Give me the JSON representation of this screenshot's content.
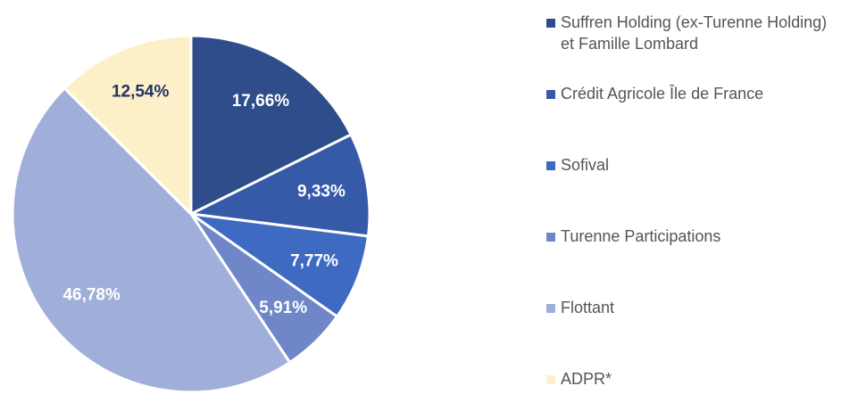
{
  "chart_data": {
    "type": "pie",
    "categories": [
      "Suffren Holding (ex-Turenne Holding) et Famille Lombard",
      "Crédit Agricole Île de France",
      "Sofival",
      "Turenne Participations",
      "Flottant",
      "ADPR*"
    ],
    "values": [
      17.66,
      9.33,
      7.77,
      5.91,
      46.78,
      12.54
    ],
    "value_labels": [
      "17,66%",
      "9,33%",
      "7,77%",
      "5,91%",
      "46,78%",
      "12,54%"
    ],
    "colors": [
      "#2f4d8a",
      "#3659a8",
      "#3f6ac2",
      "#6f87c9",
      "#a0afd9",
      "#fdf0c8"
    ],
    "legend": "right"
  }
}
